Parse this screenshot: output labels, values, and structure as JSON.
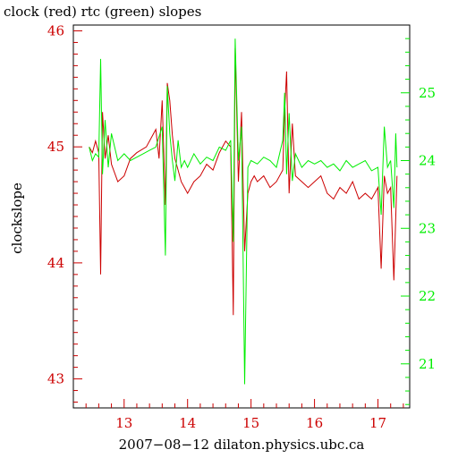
{
  "chart_data": {
    "type": "line",
    "title": "clock (red) rtc (green) slopes",
    "xlabel": "2007−08−12 dilaton.physics.ubc.ca",
    "ylabel": "clockslope",
    "colors": {
      "left_axis": "#cc0000",
      "right_axis": "#00ee00",
      "clock": "#cc0000",
      "rtc": "#00ee00",
      "frame": "#000000"
    },
    "xlim": [
      12.2,
      17.5
    ],
    "ylim": [
      42.75,
      46.05
    ],
    "y2lim": [
      20.35,
      26.0
    ],
    "x_ticks": [
      13,
      14,
      15,
      16,
      17
    ],
    "y_ticks": [
      43,
      44,
      45,
      46
    ],
    "y2_ticks": [
      21,
      22,
      23,
      24,
      25
    ],
    "grid": false,
    "series": [
      {
        "name": "clock",
        "axis": "left",
        "x": [
          12.45,
          12.5,
          12.55,
          12.6,
          12.63,
          12.66,
          12.7,
          12.75,
          12.8,
          12.9,
          13.0,
          13.1,
          13.2,
          13.35,
          13.5,
          13.55,
          13.6,
          13.65,
          13.68,
          13.72,
          13.76,
          13.8,
          13.85,
          13.9,
          13.95,
          14.0,
          14.1,
          14.2,
          14.3,
          14.4,
          14.5,
          14.6,
          14.68,
          14.72,
          14.75,
          14.8,
          14.85,
          14.9,
          14.95,
          15.0,
          15.05,
          15.1,
          15.2,
          15.3,
          15.4,
          15.5,
          15.53,
          15.56,
          15.6,
          15.65,
          15.7,
          15.8,
          15.9,
          16.0,
          16.1,
          16.2,
          16.3,
          16.4,
          16.5,
          16.6,
          16.7,
          16.8,
          16.9,
          17.0,
          17.05,
          17.1,
          17.15,
          17.2,
          17.25,
          17.3
        ],
        "y": [
          45.0,
          44.95,
          45.05,
          44.95,
          43.9,
          45.3,
          44.9,
          45.1,
          44.85,
          44.7,
          44.75,
          44.9,
          44.95,
          45.0,
          45.15,
          44.9,
          45.4,
          44.5,
          45.55,
          45.4,
          45.1,
          44.9,
          44.8,
          44.7,
          44.65,
          44.6,
          44.7,
          44.75,
          44.85,
          44.8,
          44.95,
          45.05,
          45.0,
          43.55,
          45.85,
          44.7,
          45.3,
          44.1,
          44.6,
          44.7,
          44.75,
          44.7,
          44.75,
          44.65,
          44.7,
          44.8,
          45.3,
          45.65,
          44.6,
          45.2,
          44.75,
          44.7,
          44.65,
          44.7,
          44.75,
          44.6,
          44.55,
          44.65,
          44.6,
          44.7,
          44.55,
          44.6,
          44.55,
          44.65,
          43.95,
          44.75,
          44.6,
          44.65,
          43.85,
          44.75
        ]
      },
      {
        "name": "rtc",
        "axis": "right",
        "x": [
          12.45,
          12.5,
          12.55,
          12.6,
          12.63,
          12.66,
          12.7,
          12.75,
          12.8,
          12.9,
          13.0,
          13.1,
          13.2,
          13.3,
          13.4,
          13.5,
          13.6,
          13.65,
          13.68,
          13.72,
          13.76,
          13.8,
          13.85,
          13.9,
          13.95,
          14.0,
          14.1,
          14.2,
          14.3,
          14.4,
          14.5,
          14.6,
          14.68,
          14.72,
          14.75,
          14.8,
          14.85,
          14.9,
          14.95,
          15.0,
          15.1,
          15.2,
          15.3,
          15.4,
          15.5,
          15.53,
          15.56,
          15.6,
          15.65,
          15.7,
          15.8,
          15.9,
          16.0,
          16.1,
          16.2,
          16.3,
          16.4,
          16.5,
          16.6,
          16.7,
          16.8,
          16.9,
          17.0,
          17.05,
          17.1,
          17.15,
          17.2,
          17.25,
          17.28,
          17.3
        ],
        "y": [
          24.2,
          24.0,
          24.1,
          24.05,
          25.5,
          23.8,
          24.6,
          23.9,
          24.4,
          24.0,
          24.1,
          24.0,
          24.05,
          24.1,
          24.15,
          24.2,
          24.5,
          22.6,
          25.1,
          24.4,
          24.0,
          23.7,
          24.3,
          23.9,
          24.0,
          23.9,
          24.1,
          23.95,
          24.05,
          24.0,
          24.2,
          24.15,
          24.3,
          22.8,
          25.8,
          24.0,
          24.5,
          20.7,
          23.9,
          24.0,
          23.95,
          24.05,
          24.0,
          23.9,
          24.3,
          25.0,
          23.8,
          24.7,
          23.7,
          24.1,
          23.9,
          24.0,
          23.95,
          24.0,
          23.9,
          23.95,
          23.85,
          24.0,
          23.9,
          23.95,
          24.0,
          23.85,
          23.9,
          23.2,
          24.5,
          23.9,
          24.0,
          23.3,
          24.4,
          23.9
        ]
      }
    ]
  }
}
